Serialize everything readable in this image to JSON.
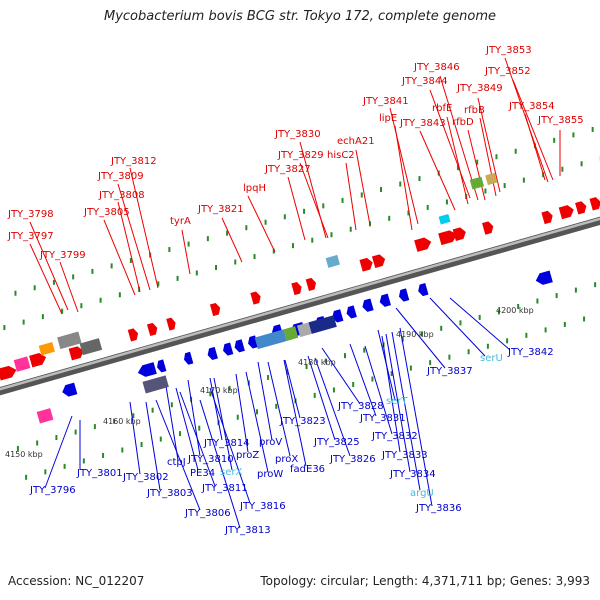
{
  "title": "Mycobacterium bovis BCG str. Tokyo 172, complete genome",
  "footer": {
    "accession": "Accession: NC_012207",
    "topology": "Topology: circular; Length: 4,371,711 bp; Genes: 3,993"
  },
  "colors": {
    "forward_gene": "#ee0000",
    "reverse_gene": "#0000dd",
    "rna_gene": "#44bbdd",
    "backbone": "#888888",
    "tick": "#2a8a2a"
  },
  "scale": {
    "unit": "kbp",
    "labels": [
      "4150 kbp",
      "4160 kbp",
      "4170 kbp",
      "4180 kbp",
      "4190 kbp",
      "4200 kbp"
    ]
  },
  "forward_labels": [
    "JTY_3853",
    "JTY_3852",
    "JTY_3846",
    "JTY_3844",
    "JTY_3849",
    "JTY_3854",
    "JTY_3855",
    "JTY_3841",
    "rbfE",
    "rfbB",
    "rfbD",
    "lipE",
    "JTY_3843",
    "JTY_3830",
    "echA21",
    "JTY_3829",
    "hisC2",
    "JTY_3827",
    "JTY_3812",
    "JTY_3809",
    "lpqH",
    "JTY_3808",
    "JTY_3805",
    "JTY_3821",
    "tyrA",
    "JTY_3798",
    "JTY_3797",
    "JTY_3799"
  ],
  "reverse_labels": [
    "JTY_3842",
    "serU",
    "JTY_3837",
    "JTY_3828",
    "serT",
    "JTY_3831",
    "JTY_3832",
    "JTY_3823",
    "JTY_3825",
    "JTY_3826",
    "JTY_3833",
    "JTY_3834",
    "argU",
    "JTY_3836",
    "proV",
    "proX",
    "fadE36",
    "proZ",
    "JTY_3814",
    "serX",
    "JTY_3810",
    "proW",
    "ctpJ",
    "PE34",
    "JTY_3816",
    "JTY_3811",
    "JTY_3801",
    "JTY_3802",
    "JTY_3803",
    "JTY_3806",
    "JTY_3813",
    "JTY_3796"
  ]
}
